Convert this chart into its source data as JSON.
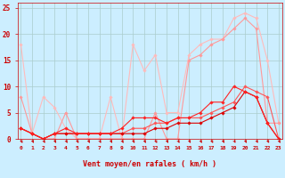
{
  "xlabel": "Vent moyen/en rafales ( km/h )",
  "bg_color": "#cceeff",
  "grid_color": "#aacccc",
  "ylim": [
    0,
    26
  ],
  "xlim": [
    -0.3,
    23.3
  ],
  "yticks": [
    0,
    5,
    10,
    15,
    20,
    25
  ],
  "xticks": [
    0,
    1,
    2,
    3,
    4,
    5,
    6,
    7,
    8,
    9,
    10,
    11,
    12,
    13,
    14,
    15,
    16,
    17,
    18,
    19,
    20,
    21,
    22,
    23
  ],
  "series": [
    {
      "color": "#ffbbbb",
      "lw": 0.8,
      "x": [
        0,
        1,
        2,
        3,
        4,
        5,
        6,
        7,
        8,
        9,
        10,
        11,
        12,
        13,
        14,
        15,
        16,
        17,
        18,
        19,
        20,
        21,
        22,
        23
      ],
      "y": [
        18,
        1,
        8,
        6,
        2,
        0,
        0,
        0,
        8,
        0,
        18,
        13,
        16,
        5,
        5,
        16,
        18,
        19,
        19,
        23,
        24,
        23,
        15,
        3
      ]
    },
    {
      "color": "#ff9999",
      "lw": 0.8,
      "x": [
        0,
        1,
        2,
        3,
        4,
        5,
        6,
        7,
        8,
        9,
        10,
        11,
        12,
        13,
        14,
        15,
        16,
        17,
        18,
        19,
        20,
        21,
        22,
        23
      ],
      "y": [
        8,
        1,
        0,
        0,
        5,
        0,
        0,
        0,
        0,
        0,
        0,
        0,
        5,
        0,
        0,
        15,
        16,
        18,
        19,
        21,
        23,
        21,
        3,
        3
      ]
    },
    {
      "color": "#ff5555",
      "lw": 0.8,
      "x": [
        0,
        1,
        2,
        3,
        4,
        5,
        6,
        7,
        8,
        9,
        10,
        11,
        12,
        13,
        14,
        15,
        16,
        17,
        18,
        19,
        20,
        21,
        22,
        23
      ],
      "y": [
        2,
        1,
        0,
        1,
        1,
        1,
        1,
        1,
        1,
        1,
        2,
        2,
        3,
        3,
        4,
        4,
        4,
        5,
        6,
        7,
        10,
        9,
        8,
        0
      ]
    },
    {
      "color": "#dd0000",
      "lw": 0.8,
      "x": [
        0,
        1,
        2,
        3,
        4,
        5,
        6,
        7,
        8,
        9,
        10,
        11,
        12,
        13,
        14,
        15,
        16,
        17,
        18,
        19,
        20,
        21,
        22,
        23
      ],
      "y": [
        2,
        1,
        0,
        1,
        1,
        1,
        1,
        1,
        1,
        1,
        1,
        1,
        2,
        2,
        3,
        3,
        3,
        4,
        5,
        6,
        9,
        8,
        3,
        0
      ]
    },
    {
      "color": "#ff2222",
      "lw": 0.8,
      "x": [
        0,
        1,
        2,
        3,
        4,
        5,
        6,
        7,
        8,
        9,
        10,
        11,
        12,
        13,
        14,
        15,
        16,
        17,
        18,
        19,
        20,
        21,
        22,
        23
      ],
      "y": [
        2,
        1,
        0,
        1,
        2,
        1,
        1,
        1,
        1,
        2,
        4,
        4,
        4,
        3,
        4,
        4,
        5,
        7,
        7,
        10,
        9,
        8,
        3,
        0
      ]
    }
  ]
}
